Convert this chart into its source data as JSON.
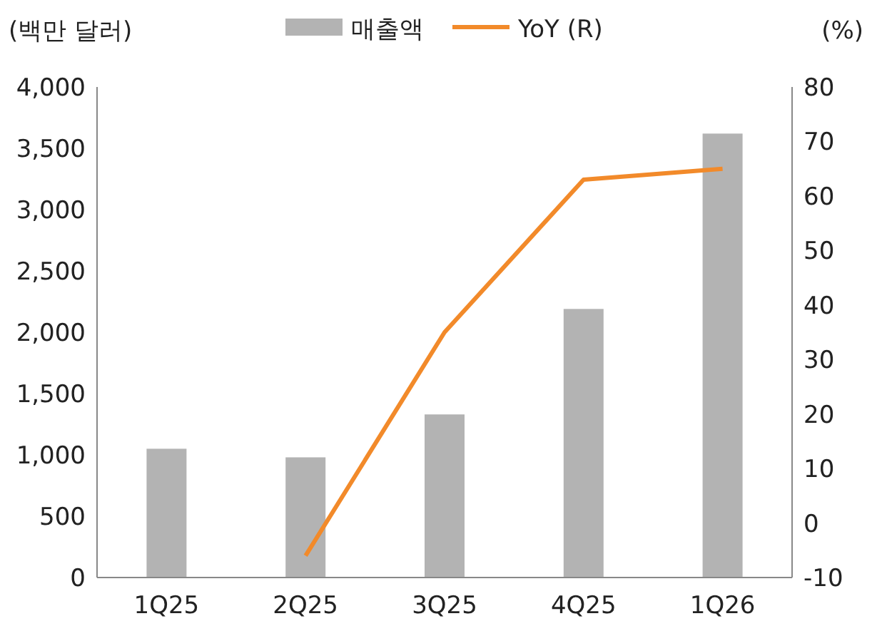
{
  "chart_data": {
    "type": "bar",
    "ylabel": "(백만 달러)",
    "y2label": "(%)",
    "categories": [
      "1Q25",
      "2Q25",
      "3Q25",
      "4Q25",
      "1Q26"
    ],
    "series": [
      {
        "name": "매출액",
        "color": "#b3b3b3",
        "values": [
          1050,
          980,
          1330,
          2190,
          3620
        ]
      },
      {
        "name": "YoY (R)",
        "type": "line",
        "axis": "y2",
        "color": "#f28a2a",
        "values": [
          null,
          -6,
          35,
          63,
          65
        ]
      }
    ],
    "ylim": [
      0,
      4000
    ],
    "yticks": [
      {
        "value": 0,
        "label": "0"
      },
      {
        "value": 500,
        "label": "500"
      },
      {
        "value": 1000,
        "label": "1,000"
      },
      {
        "value": 1500,
        "label": "1,500"
      },
      {
        "value": 2000,
        "label": "2,000"
      },
      {
        "value": 2500,
        "label": "2,500"
      },
      {
        "value": 3000,
        "label": "3,000"
      },
      {
        "value": 3500,
        "label": "3,500"
      },
      {
        "value": 4000,
        "label": "4,000"
      }
    ],
    "y2lim": [
      -10,
      80
    ],
    "y2ticks": [
      -10,
      0,
      10,
      20,
      30,
      40,
      50,
      60,
      70,
      80
    ],
    "legend": "top",
    "grid": false,
    "marker": "none"
  }
}
